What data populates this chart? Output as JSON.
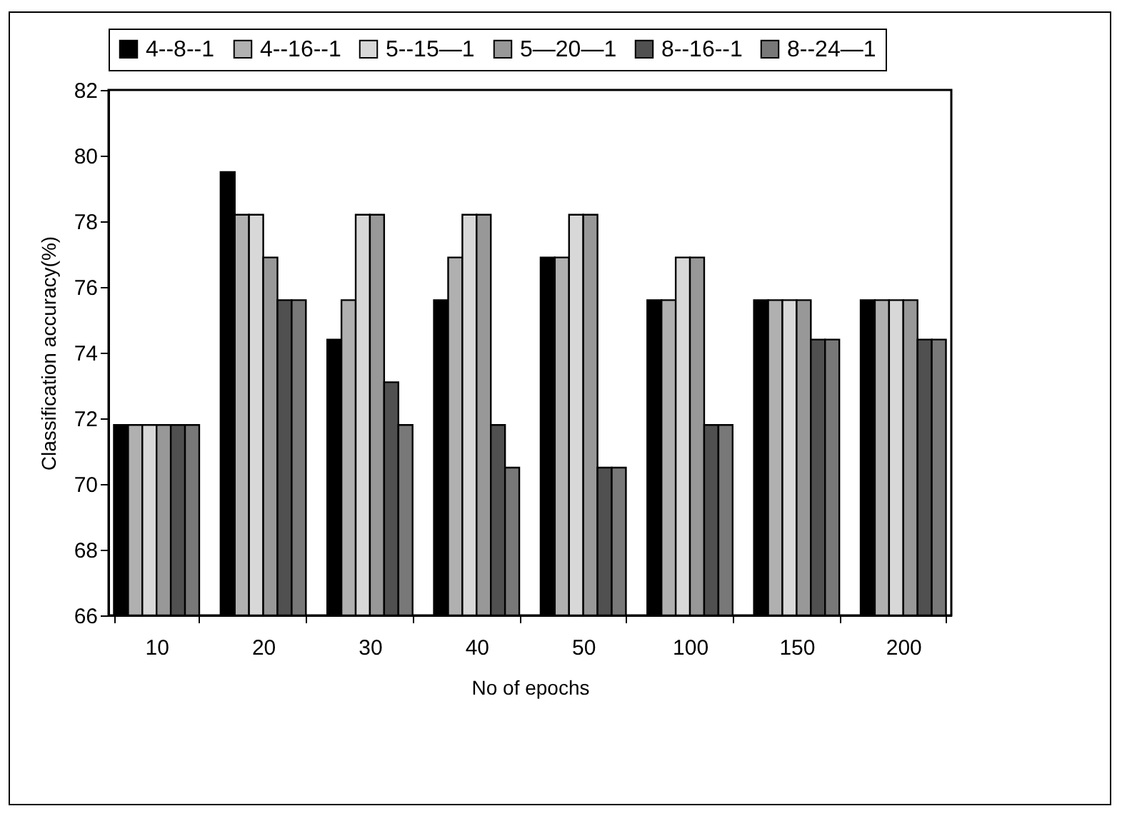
{
  "chart_data": {
    "type": "bar",
    "xlabel": "No of epochs",
    "ylabel": "Classification accuracy(%)",
    "categories": [
      "10",
      "20",
      "30",
      "40",
      "50",
      "100",
      "150",
      "200"
    ],
    "series": [
      {
        "name": "4--8--1",
        "color": "#000000",
        "values": [
          71.8,
          79.5,
          74.4,
          75.6,
          76.9,
          75.6,
          75.6,
          75.6
        ]
      },
      {
        "name": "4--16--1",
        "color": "#b0b0b0",
        "values": [
          71.8,
          78.2,
          75.6,
          76.9,
          76.9,
          75.6,
          75.6,
          75.6
        ]
      },
      {
        "name": "5--15—1",
        "color": "#d8d8d8",
        "values": [
          71.8,
          78.2,
          78.2,
          78.2,
          78.2,
          76.9,
          75.6,
          75.6
        ]
      },
      {
        "name": "5—20—1",
        "color": "#989898",
        "values": [
          71.8,
          76.9,
          78.2,
          78.2,
          78.2,
          76.9,
          75.6,
          75.6
        ]
      },
      {
        "name": "8--16--1",
        "color": "#505050",
        "values": [
          71.8,
          75.6,
          73.1,
          71.8,
          70.5,
          71.8,
          74.4,
          74.4
        ]
      },
      {
        "name": "8--24—1",
        "color": "#787878",
        "values": [
          71.8,
          75.6,
          71.8,
          70.5,
          70.5,
          71.8,
          74.4,
          74.4
        ]
      }
    ],
    "ylim": [
      66,
      82
    ],
    "yticks": [
      66,
      68,
      70,
      72,
      74,
      76,
      78,
      80,
      82
    ],
    "grid": false,
    "legend": "top"
  }
}
